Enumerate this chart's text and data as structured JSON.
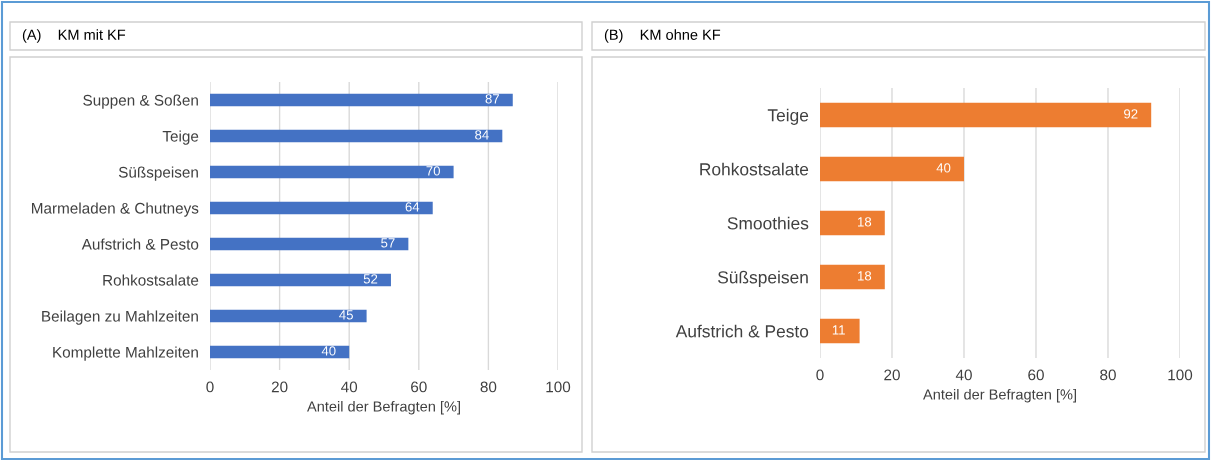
{
  "chart_data": [
    {
      "type": "bar",
      "title": "(A)    KM mit KF",
      "orientation": "horizontal",
      "categories": [
        "Suppen & Soßen",
        "Teige",
        "Süßspeisen",
        "Marmeladen & Chutneys",
        "Aufstrich & Pesto",
        "Rohkostsalate",
        "Beilagen zu Mahlzeiten",
        "Komplette Mahlzeiten"
      ],
      "series": [
        {
          "color": "#4472c4",
          "values": [
            87,
            84,
            70,
            64,
            57,
            52,
            45,
            40
          ]
        }
      ],
      "xlabel": "Anteil der Befragten [%]",
      "xlim": [
        0,
        100
      ],
      "xticks": [
        0,
        20,
        40,
        60,
        80,
        100
      ],
      "grid": "x",
      "data_labels": true,
      "legend": false
    },
    {
      "type": "bar",
      "title": "(B)    KM ohne KF",
      "orientation": "horizontal",
      "categories": [
        "Teige",
        "Rohkostsalate",
        "Smoothies",
        "Süßspeisen",
        "Aufstrich & Pesto"
      ],
      "series": [
        {
          "color": "#ed7d31",
          "values": [
            92,
            40,
            18,
            18,
            11
          ]
        }
      ],
      "xlabel": "Anteil der Befragten [%]",
      "xlim": [
        0,
        100
      ],
      "xticks": [
        0,
        20,
        40,
        60,
        80,
        100
      ],
      "grid": "x",
      "data_labels": true,
      "legend": false
    }
  ]
}
